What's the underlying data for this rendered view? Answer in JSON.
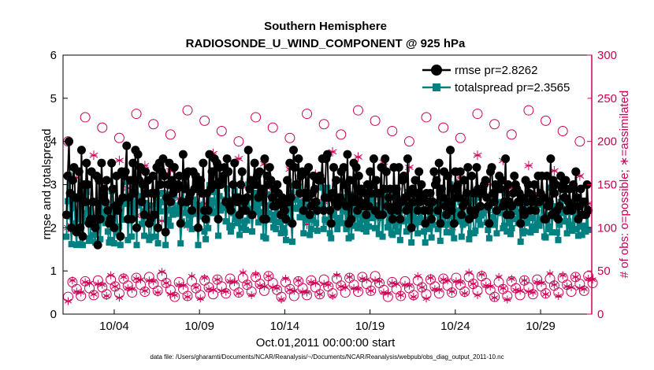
{
  "chart_data": {
    "type": "line",
    "title": "Southern Hemisphere",
    "subtitle": "RADIOSONDE_U_WIND_COMPONENT @ 925 hPa",
    "xlabel": "Oct.01,2011 00:00:00 start",
    "ylabel_left": "rmse and totalspread",
    "ylabel_right": "# of obs: o=possible; ∗=assimilated",
    "xlim": [
      1,
      32
    ],
    "ylim_left": [
      0,
      6
    ],
    "ylim_right": [
      0,
      300
    ],
    "xtick_labels": [
      "10/04",
      "10/09",
      "10/14",
      "10/19",
      "10/24",
      "10/29"
    ],
    "xtick_positions": [
      4,
      9,
      14,
      19,
      24,
      29
    ],
    "ytick_left": [
      "0",
      "1",
      "2",
      "3",
      "4",
      "5",
      "6"
    ],
    "ytick_right": [
      "0",
      "50",
      "100",
      "150",
      "200",
      "250",
      "300"
    ],
    "colors": {
      "left_axis": "#000000",
      "right_axis": "#cc0055",
      "rmse": "#000000",
      "spread": "#008080",
      "obs": "#cc0055"
    },
    "legend": {
      "position": "top-right",
      "entries": [
        "rmse pr=2.8262",
        "totalspread pr=2.3565"
      ]
    },
    "series_left": [
      {
        "name": "rmse pr=2.8262",
        "values": [
          2.3,
          3.2,
          4.0,
          2.8,
          2.0,
          3.1,
          3.4,
          2.7,
          1.9,
          2.7,
          3.3,
          2.0,
          3.8,
          1.8,
          3.0,
          2.6,
          3.5,
          3.0,
          2.1,
          2.2,
          3.3,
          2.6,
          2.2,
          2.0,
          3.2,
          1.6,
          3.1,
          2.2,
          3.5,
          2.7,
          2.9,
          2.6,
          3.1,
          2.4,
          2.1,
          2.2,
          3.5,
          2.9,
          2.0,
          2.5,
          3.2,
          2.4,
          2.6,
          1.8,
          3.3,
          2.7,
          3.2,
          3.3,
          3.9,
          2.2,
          2.7,
          3.1,
          2.2,
          3.5,
          2.8,
          3.8,
          2.0,
          3.7,
          3.1,
          3.4,
          2.6,
          3.0,
          2.3,
          3.3,
          2.8,
          3.1,
          2.1,
          2.2,
          2.8,
          3.2,
          2.3,
          2.8,
          3.4,
          2.0,
          3.5,
          3.0,
          3.3,
          3.6,
          3.2,
          1.9,
          2.7,
          3.0,
          3.5,
          2.6,
          3.1,
          2.8,
          3.4,
          3.0,
          2.9,
          3.0,
          3.2,
          2.1,
          2.6,
          3.7,
          2.9,
          3.2,
          2.6,
          3.3,
          2.7,
          2.8,
          2.4,
          3.3,
          2.9,
          3.2,
          3.0,
          2.0,
          2.9,
          3.1,
          2.8,
          3.5,
          2.4,
          2.2,
          2.8,
          2.4,
          3.7,
          2.9,
          3.3,
          3.0,
          3.6,
          3.0,
          3.5,
          2.2,
          3.4,
          3.0,
          3.1,
          3.2,
          3.4,
          2.6,
          3.6,
          3.3,
          2.5,
          2.4,
          2.6,
          3.0,
          3.5,
          2.7,
          2.6,
          2.7,
          2.3,
          3.0,
          3.3,
          2.4,
          2.6,
          2.4,
          2.7,
          3.8,
          2.9,
          3.1,
          2.3,
          3.0,
          3.5,
          3.0,
          3.2,
          2.7,
          3.3,
          2.8,
          2.9,
          2.2,
          3.6,
          2.2,
          3.2,
          3.0,
          3.4,
          3.1,
          2.7,
          2.5,
          2.9,
          2.5,
          3.0,
          2.8,
          2.6,
          2.3,
          2.7,
          2.5,
          2.4,
          2.2,
          3.1,
          2.6,
          3.5,
          2.7,
          2.1,
          3.8,
          3.4,
          3.0,
          3.0,
          3.6,
          2.8,
          3.2,
          3.3,
          2.4,
          2.8,
          3.3,
          2.7,
          3.4,
          2.3,
          2.5,
          2.8,
          3.2,
          2.9,
          2.6,
          2.4,
          3.1,
          3.2,
          3.1,
          3.6,
          2.4,
          2.7,
          3.6,
          3.7,
          2.7,
          2.4,
          2.1,
          2.8,
          3.4,
          2.6,
          3.1,
          2.5,
          2.7,
          2.7,
          3.3,
          2.6,
          3.4,
          3.0,
          2.5,
          3.7,
          2.1,
          3.1,
          2.2,
          2.7,
          3.5,
          2.6,
          3.4,
          2.4,
          3.2,
          2.6,
          2.9,
          2.5,
          2.5,
          2.8,
          2.3,
          3.0,
          2.5,
          3.3,
          2.8,
          3.0,
          3.6,
          2.4,
          3.1,
          2.8,
          2.3,
          2.8,
          3.4,
          2.3,
          2.9,
          3.6,
          3.3,
          2.5,
          2.7,
          2.9,
          2.4,
          2.2,
          3.4,
          2.5,
          2.9,
          2.4,
          3.4,
          2.2,
          2.6,
          3.1,
          3.2,
          2.7,
          2.4,
          3.6,
          2.5,
          2.8,
          2.0,
          2.9,
          2.6,
          3.1,
          2.8,
          2.4,
          3.3,
          2.6,
          3.0,
          2.7,
          2.4,
          2.1,
          2.8,
          2.6,
          2.4,
          2.8,
          2.2,
          2.6,
          3.3,
          3.0,
          3.1,
          2.4,
          3.5,
          2.1,
          2.9,
          2.7,
          3.3,
          2.5,
          2.3,
          3.2,
          2.6,
          3.8,
          2.4,
          2.9,
          2.1,
          3.3,
          2.7,
          3.0,
          2.7,
          3.3,
          2.3,
          2.5,
          3.1,
          2.6,
          2.8,
          3.4,
          2.2,
          2.4,
          3.2,
          2.8,
          2.3,
          2.4,
          3.4,
          2.9,
          2.8,
          2.5,
          2.8,
          2.9,
          3.0,
          3.1,
          2.7,
          2.5,
          2.1,
          3.3,
          3.4,
          2.8,
          2.6,
          3.0,
          2.4,
          2.9,
          3.2,
          2.9,
          3.1,
          2.5,
          2.6,
          3.6,
          2.3,
          3.0,
          2.6,
          2.3,
          2.5,
          2.8,
          3.2,
          3.0,
          2.9,
          2.6,
          2.8,
          2.1,
          2.7,
          2.4,
          2.3,
          3.1,
          2.6,
          3.0,
          2.8,
          2.4,
          2.6,
          2.7,
          3.0,
          2.4,
          2.6,
          3.2,
          2.6,
          2.8,
          3.2,
          2.7,
          2.2,
          2.2,
          3.2,
          2.5,
          2.6,
          3.6,
          2.3,
          3.1,
          2.8,
          3.0,
          2.4,
          2.2,
          2.5,
          3.2,
          2.9,
          3.0,
          2.7,
          3.1,
          2.4,
          2.6,
          2.9,
          2.5,
          2.4,
          3.0,
          2.5,
          3.3,
          2.7,
          2.2,
          2.5,
          2.9,
          2.3,
          2.6,
          2.6,
          2.3,
          3.0,
          2.4
        ]
      }
    ],
    "series_right": [
      {
        "name": "possible (o)",
        "values": []
      },
      {
        "name": "assimilated (*)",
        "values": []
      }
    ]
  },
  "footnote": "data file: /Users/gharamti/Documents/NCAR/Reanalysis/~/Documents/NCAR/Reanalysis/webpub/obs_diag_output_2011-10.nc"
}
